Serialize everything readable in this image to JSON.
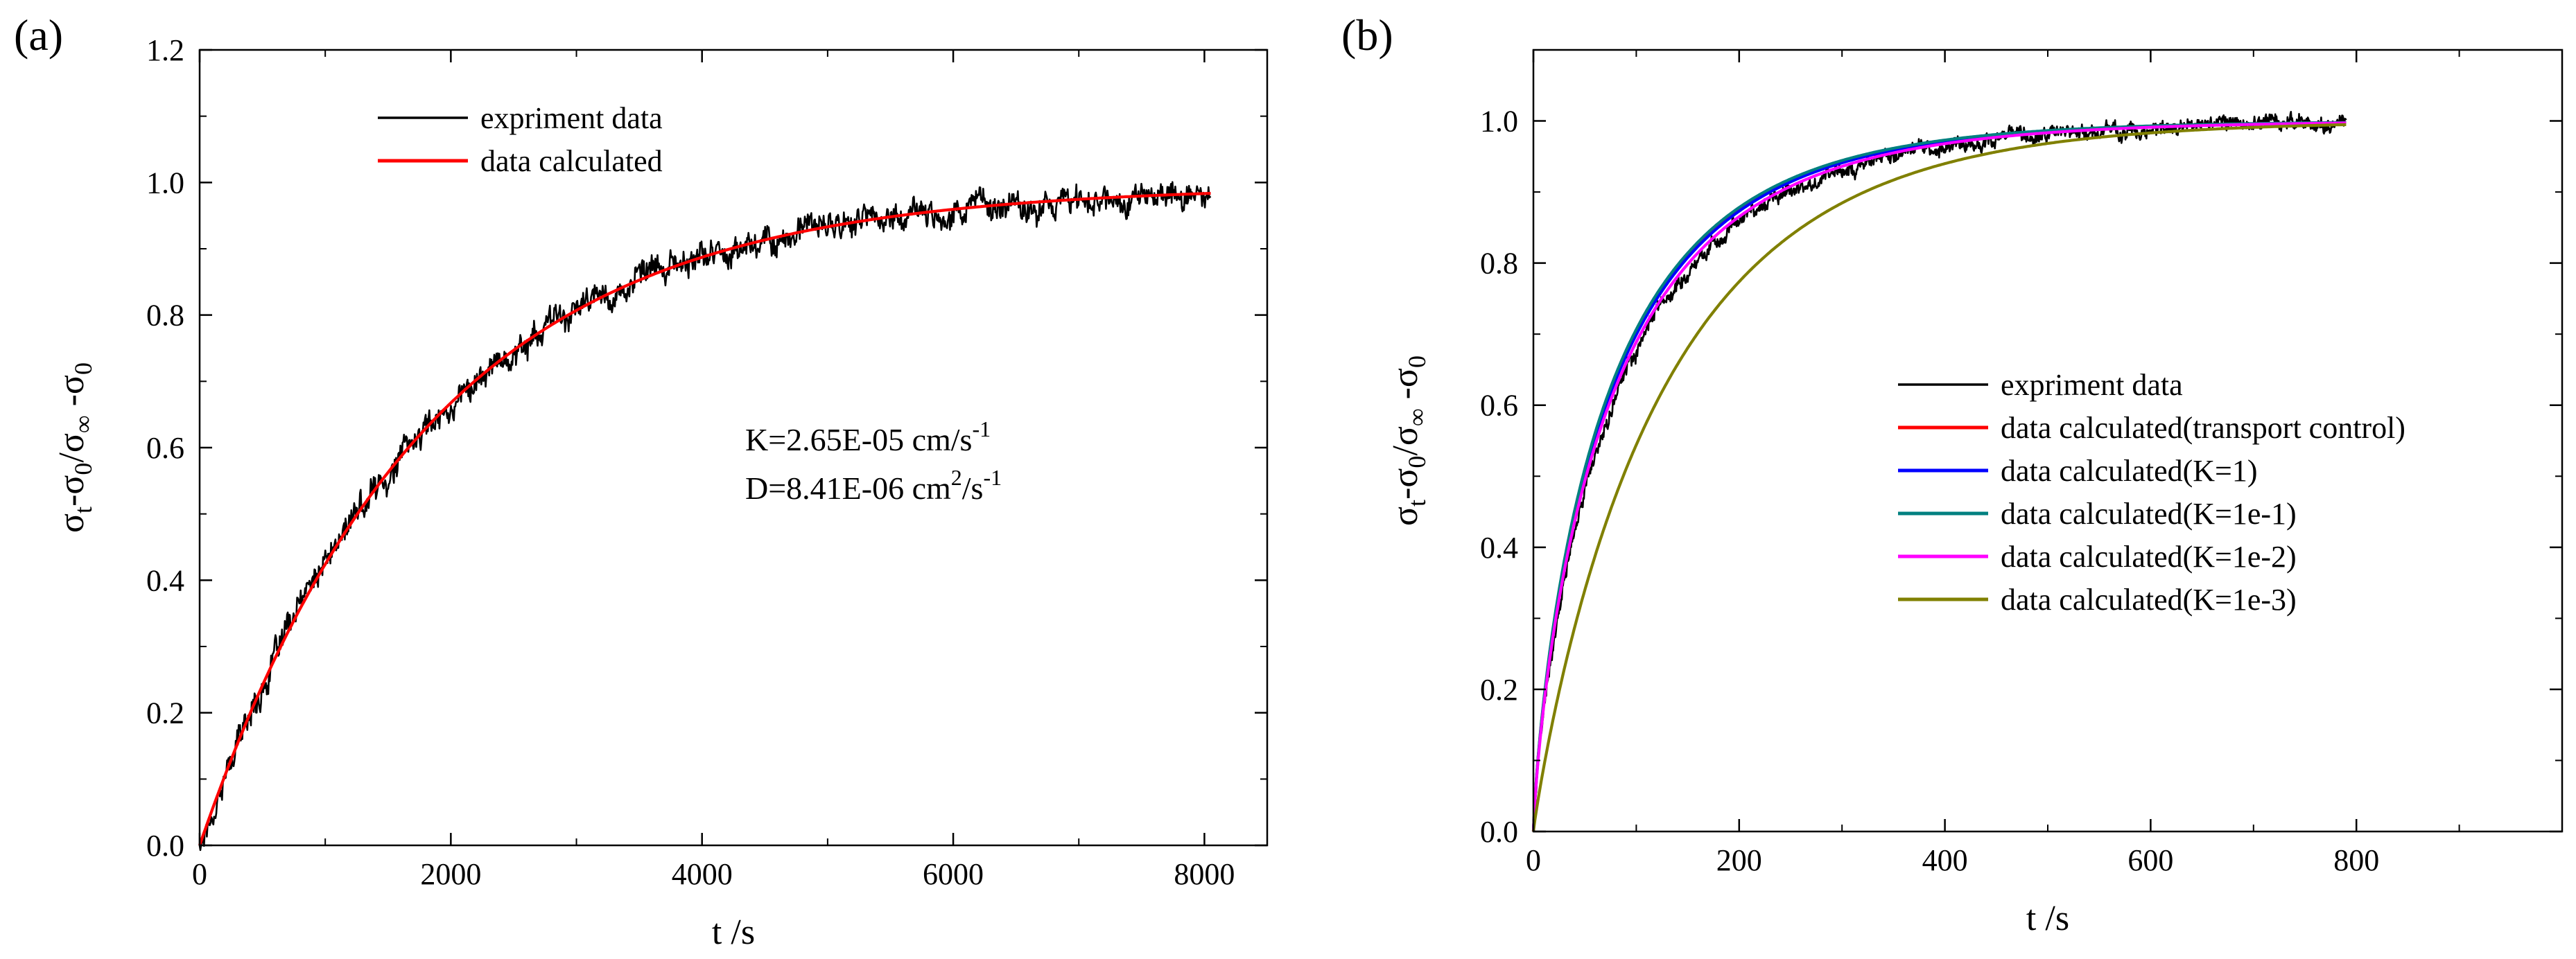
{
  "figure": {
    "panel_a_label": "(a)",
    "panel_b_label": "(b)"
  },
  "chart_data": [
    {
      "type": "line",
      "panel": "(a)",
      "title": "",
      "xlabel": "t /s",
      "ylabel": "σt-σ0/σ∞-σ0",
      "ylabel_parts": {
        "sigma": "σ",
        "t": "t",
        "dash": "-",
        "zero": "0",
        "slash": "/",
        "inf": "∞"
      },
      "xlim": [
        0,
        8500
      ],
      "ylim": [
        0,
        1.2
      ],
      "xticks": [
        0,
        2000,
        4000,
        6000,
        8000
      ],
      "xtick_labels": [
        "0",
        "2000",
        "4000",
        "6000",
        "8000"
      ],
      "yticks": [
        0.0,
        0.2,
        0.4,
        0.6,
        0.8,
        1.0,
        1.2
      ],
      "ytick_labels": [
        "0.0",
        "0.2",
        "0.4",
        "0.6",
        "0.8",
        "1.0",
        "1.2"
      ],
      "grid": false,
      "legend_position": "top-center",
      "series": [
        {
          "name": "expriment data",
          "color": "#000000",
          "style": "noisy",
          "model": "exponential",
          "tau": 1800,
          "final": 0.995,
          "noise": 0.018,
          "t_end": 8050
        },
        {
          "name": "data calculated",
          "color": "#ff0000",
          "style": "smooth",
          "model": "exponential",
          "tau": 1800,
          "final": 0.995,
          "t_end": 8050
        }
      ],
      "annotations": [
        {
          "base": "K=2.65E-05 cm/s",
          "sup": "-1"
        },
        {
          "base": "D=8.41E-06 cm",
          "mid_sup": "2",
          "rest": "/s",
          "sup": "-1"
        }
      ]
    },
    {
      "type": "line",
      "panel": "(b)",
      "title": "",
      "xlabel": "t /s",
      "ylabel": "σt-σ0/σ∞-σ0",
      "ylabel_parts": {
        "sigma": "σ",
        "t": "t",
        "dash": "-",
        "zero": "0",
        "slash": "/",
        "inf": "∞"
      },
      "xlim": [
        0,
        1000
      ],
      "ylim": [
        0,
        1.1
      ],
      "xticks": [
        0,
        200,
        400,
        600,
        800
      ],
      "xtick_labels": [
        "0",
        "200",
        "400",
        "600",
        "800"
      ],
      "yticks": [
        0.0,
        0.2,
        0.4,
        0.6,
        0.8,
        1.0
      ],
      "ytick_labels": [
        "0.0",
        "0.2",
        "0.4",
        "0.6",
        "0.8",
        "1.0"
      ],
      "grid": false,
      "legend_position": "center-right",
      "series": [
        {
          "name": "expriment data",
          "color": "#000000",
          "style": "noisy",
          "model": "sqrt-exponential",
          "tau": 85,
          "final": 1.0,
          "noise": 0.009,
          "t_end": 790
        },
        {
          "name": "data calculated(transport control)",
          "color": "#ff0000",
          "style": "smooth",
          "model": "sqrt-exponential",
          "tau": 78,
          "final": 1.0,
          "t_end": 790
        },
        {
          "name": "data calculated(K=1)",
          "color": "#0000ff",
          "style": "smooth",
          "model": "sqrt-exponential",
          "tau": 79,
          "final": 1.0,
          "t_end": 790
        },
        {
          "name": "data calculated(K=1e-1)",
          "color": "#008080",
          "style": "smooth",
          "model": "sqrt-exponential",
          "tau": 77,
          "final": 1.0,
          "t_end": 790
        },
        {
          "name": "data calculated(K=1e-2)",
          "color": "#ff00ff",
          "style": "smooth",
          "model": "sqrt-exponential",
          "tau": 82,
          "final": 1.0,
          "t_end": 790
        },
        {
          "name": "data calculated(K=1e-3)",
          "color": "#808000",
          "style": "smooth",
          "model": "exponential-soft",
          "tau": 130,
          "final": 1.0,
          "t_end": 790
        }
      ]
    }
  ]
}
